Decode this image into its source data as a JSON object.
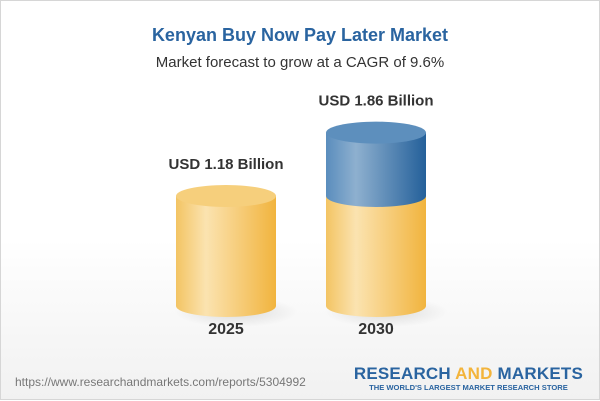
{
  "chart_data": {
    "type": "bar",
    "title": "Kenyan Buy Now Pay Later Market",
    "subtitle": "Market forecast to grow at a CAGR of 9.6%",
    "categories": [
      "2025",
      "2030"
    ],
    "values": [
      1.18,
      1.86
    ],
    "data_labels": [
      "USD 1.18 Billion",
      "USD 1.86 Billion"
    ],
    "style": "3d-cylinder",
    "colors": {
      "base": "#f3c463",
      "growth": "#4b82b5",
      "title": "#2a64a0"
    }
  },
  "footer": {
    "url": "https://www.researchandmarkets.com/reports/5304992",
    "logo_part1": "RESEARCH ",
    "logo_part2": "AND",
    "logo_part3": " MARKETS",
    "tagline": "THE WORLD'S LARGEST MARKET RESEARCH STORE"
  }
}
